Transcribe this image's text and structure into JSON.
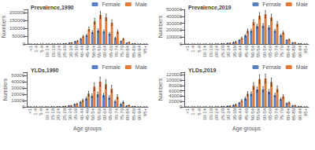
{
  "chart_data": [
    {
      "type": "bar",
      "title": "Prevalence,1990",
      "categories": [
        "<1",
        "1-4",
        "5-9",
        "10-14",
        "15-19",
        "20-24",
        "25-29",
        "30-34",
        "35-39",
        "40-44",
        "45-49",
        "50-54",
        "55-59",
        "60-64",
        "65-69",
        "70-74",
        "75-79",
        "80-84",
        "85-89",
        "90-94",
        "95+"
      ],
      "series": [
        {
          "name": "Female",
          "color": "#5b7fc4",
          "values": [
            100,
            200,
            300,
            400,
            600,
            1200,
            2500,
            7000,
            16000,
            32000,
            55000,
            75000,
            85000,
            80000,
            65000,
            38000,
            18000,
            7000,
            1800,
            400,
            80
          ],
          "errors": [
            20,
            40,
            60,
            80,
            120,
            250,
            500,
            1200,
            2500,
            4500,
            7000,
            9000,
            11000,
            10000,
            8000,
            5000,
            2500,
            1200,
            400,
            80,
            20
          ]
        },
        {
          "name": "Male",
          "color": "#e07b3a",
          "values": [
            100,
            200,
            300,
            400,
            600,
            1200,
            3000,
            8500,
            20000,
            48000,
            95000,
            145000,
            185000,
            170000,
            135000,
            78000,
            33000,
            11000,
            2800,
            600,
            80
          ],
          "errors": [
            20,
            40,
            60,
            80,
            120,
            250,
            600,
            1500,
            3500,
            7000,
            13000,
            18000,
            23000,
            21000,
            18000,
            11000,
            5000,
            1800,
            550,
            120,
            20
          ]
        }
      ],
      "ylabel": "Numbers",
      "ylim": [
        0,
        220000
      ],
      "yticks": [
        0,
        50000,
        100000,
        150000,
        200000
      ],
      "grid": false,
      "legend": "upper right"
    },
    {
      "type": "bar",
      "title": "Prevalence,2019",
      "categories": [
        "<1",
        "1-4",
        "5-9",
        "10-14",
        "15-19",
        "20-24",
        "25-29",
        "30-34",
        "35-39",
        "40-44",
        "45-49",
        "50-54",
        "55-59",
        "60-64",
        "65-69",
        "70-74",
        "75-79",
        "80-84",
        "85-89",
        "90-94",
        "95+"
      ],
      "series": [
        {
          "name": "Female",
          "color": "#5b7fc4",
          "values": [
            100,
            300,
            500,
            700,
            900,
            1800,
            4500,
            11000,
            23000,
            55000,
            120000,
            190000,
            255000,
            265000,
            240000,
            190000,
            125000,
            55000,
            18000,
            4500,
            700
          ],
          "errors": [
            25,
            60,
            100,
            120,
            160,
            360,
            900,
            2200,
            4500,
            9000,
            16000,
            23000,
            28000,
            30000,
            26000,
            20000,
            14000,
            7500,
            2800,
            700,
            130
          ]
        },
        {
          "name": "Male",
          "color": "#e07b3a",
          "values": [
            100,
            300,
            500,
            700,
            900,
            1800,
            5000,
            13500,
            32000,
            85000,
            190000,
            315000,
            410000,
            430000,
            385000,
            290000,
            165000,
            65000,
            20000,
            5000,
            700
          ],
          "errors": [
            25,
            60,
            100,
            120,
            160,
            360,
            1000,
            2700,
            6500,
            14000,
            26000,
            37000,
            47000,
            52000,
            45000,
            36000,
            20000,
            9000,
            3200,
            900,
            160
          ]
        }
      ],
      "ylabel": "Numbers",
      "ylim": [
        0,
        500000
      ],
      "yticks": [
        0,
        100000,
        200000,
        300000,
        400000,
        500000
      ],
      "grid": false,
      "legend": "upper right"
    },
    {
      "type": "bar",
      "title": "YLDs,1990",
      "categories": [
        "<1",
        "1-4",
        "5-9",
        "10-14",
        "15-19",
        "20-24",
        "25-29",
        "30-34",
        "35-39",
        "40-44",
        "45-49",
        "50-54",
        "55-59",
        "60-64",
        "65-69",
        "70-74",
        "75-79",
        "80-84",
        "85-89",
        "90-94",
        "95+"
      ],
      "series": [
        {
          "name": "Female",
          "color": "#5b7fc4",
          "values": [
            30,
            80,
            100,
            130,
            170,
            350,
            700,
            1800,
            4000,
            7500,
            13000,
            17500,
            20000,
            18500,
            14800,
            8500,
            4200,
            1700,
            450,
            100,
            20
          ],
          "errors": [
            10,
            20,
            25,
            30,
            40,
            80,
            160,
            400,
            800,
            1300,
            2200,
            3000,
            3500,
            3200,
            2800,
            1700,
            900,
            380,
            100,
            25,
            7
          ]
        },
        {
          "name": "Male",
          "color": "#e07b3a",
          "values": [
            30,
            80,
            100,
            130,
            170,
            350,
            800,
            2000,
            4800,
            10500,
            21000,
            32000,
            40000,
            36000,
            28500,
            16000,
            7500,
            2500,
            700,
            170,
            25
          ],
          "errors": [
            10,
            20,
            25,
            30,
            40,
            80,
            180,
            450,
            1000,
            2000,
            4000,
            6000,
            7500,
            7000,
            5800,
            3500,
            1700,
            550,
            160,
            40,
            8
          ]
        }
      ],
      "xlabel": "Age groups",
      "ylabel": "Numbers",
      "ylim": [
        0,
        55000
      ],
      "yticks": [
        0,
        10000,
        20000,
        30000,
        40000,
        50000
      ],
      "grid": false,
      "legend": "upper right"
    },
    {
      "type": "bar",
      "title": "YLDs,2019",
      "categories": [
        "<1",
        "1-4",
        "5-9",
        "10-14",
        "15-19",
        "20-24",
        "25-29",
        "30-34",
        "35-39",
        "40-44",
        "45-49",
        "50-54",
        "55-59",
        "60-64",
        "65-69",
        "70-74",
        "75-79",
        "80-84",
        "85-89",
        "90-94",
        "95+"
      ],
      "series": [
        {
          "name": "Female",
          "color": "#5b7fc4",
          "values": [
            30,
            100,
            140,
            180,
            230,
            480,
            1200,
            2800,
            6200,
            15000,
            31000,
            49000,
            65000,
            66000,
            57000,
            44000,
            29000,
            13000,
            4400,
            1100,
            180
          ],
          "errors": [
            10,
            25,
            30,
            35,
            50,
            110,
            270,
            630,
            1300,
            2700,
            5000,
            7200,
            9000,
            9500,
            8500,
            6700,
            4500,
            2200,
            750,
            200,
            40
          ]
        },
        {
          "name": "Male",
          "color": "#e07b3a",
          "values": [
            30,
            100,
            140,
            180,
            230,
            480,
            1350,
            3400,
            8500,
            23000,
            49000,
            79000,
            104000,
            106000,
            93000,
            67000,
            39000,
            16000,
            5000,
            1250,
            180
          ],
          "errors": [
            10,
            25,
            30,
            35,
            50,
            110,
            290,
            720,
            1800,
            4500,
            8200,
            12500,
            16000,
            17000,
            15000,
            11500,
            6800,
            2900,
            900,
            250,
            45
          ]
        }
      ],
      "xlabel": "Age groups",
      "ylabel": "Numbers",
      "ylim": [
        0,
        130000
      ],
      "yticks": [
        0,
        20000,
        40000,
        60000,
        80000,
        100000,
        120000
      ],
      "grid": false,
      "legend": "upper right"
    }
  ]
}
